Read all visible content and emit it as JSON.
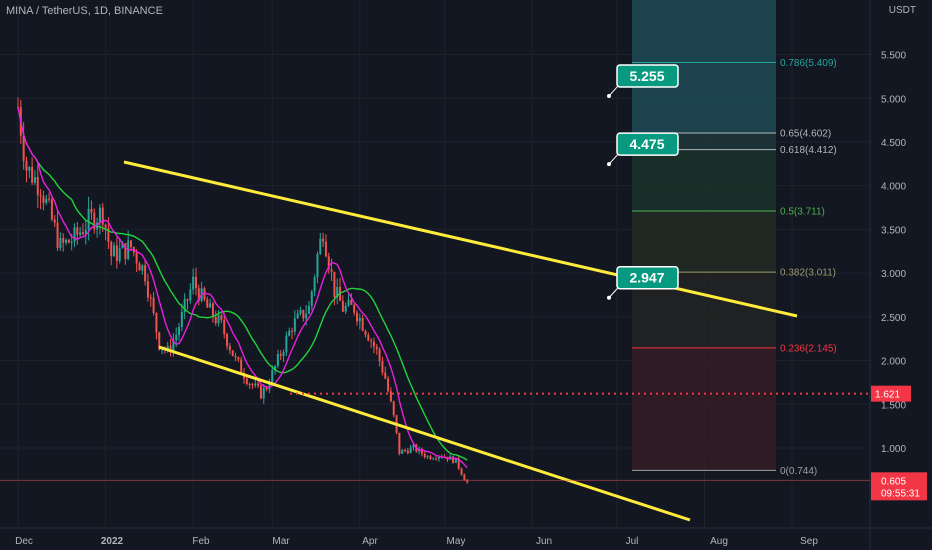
{
  "header": {
    "symbol": "MINA / TetherUS, 1D, BINANCE",
    "currency": "USDT"
  },
  "chart_data": {
    "type": "candlestick",
    "ylim": [
      0.35,
      6.25
    ],
    "x_ticks": [
      "Dec",
      "2022",
      "Feb",
      "Mar",
      "Apr",
      "May",
      "Jun",
      "Jul",
      "Aug",
      "Sep"
    ],
    "y_ticks": [
      "5.500",
      "5.000",
      "4.500",
      "4.000",
      "3.500",
      "3.000",
      "2.500",
      "2.000",
      "1.500",
      "1.000"
    ],
    "fib_levels": [
      {
        "label": "0.786(5.409)",
        "value": 5.409,
        "color": "#26a69a"
      },
      {
        "label": "0.65(4.602)",
        "value": 4.602,
        "color": "#b2b5be"
      },
      {
        "label": "0.618(4.412)",
        "value": 4.412,
        "color": "#b2b5be"
      },
      {
        "label": "0.5(3.711)",
        "value": 3.711,
        "color": "#4caf50"
      },
      {
        "label": "0.382(3.011)",
        "value": 3.011,
        "color": "#9a9a6a"
      },
      {
        "label": "0.236(2.145)",
        "value": 2.145,
        "color": "#f23645"
      },
      {
        "label": "0(0.744)",
        "value": 0.744,
        "color": "#9aa0a6"
      }
    ],
    "targets": [
      {
        "label": "5.255",
        "value": 5.255
      },
      {
        "label": "4.475",
        "value": 4.475
      },
      {
        "label": "2.947",
        "value": 2.947
      }
    ],
    "price_marker": {
      "label": "1.621",
      "value": 1.621,
      "color": "#f23645"
    },
    "last_price": {
      "value": "0.605",
      "countdown": "09:55:31",
      "color": "#f23645"
    },
    "colors": {
      "up": "#26a69a",
      "down": "#ef5350",
      "ma_fast": "#e91ee0",
      "ma_slow": "#22d33a",
      "channel": "#ffeb3b"
    }
  }
}
